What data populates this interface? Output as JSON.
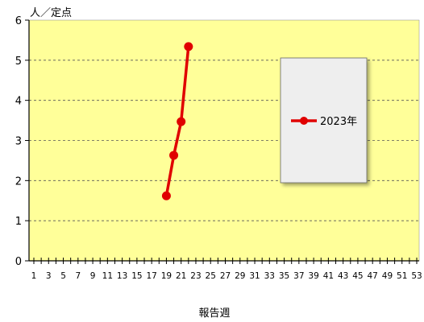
{
  "chart_data": {
    "type": "line",
    "ylabel": "人／定点",
    "xlabel": "報告週",
    "ylim": [
      0,
      6
    ],
    "xlim": [
      1,
      53
    ],
    "y_ticks": [
      0,
      1,
      2,
      3,
      4,
      5,
      6
    ],
    "x_tick_labels": [
      1,
      3,
      5,
      7,
      9,
      11,
      13,
      15,
      17,
      19,
      21,
      23,
      25,
      27,
      29,
      31,
      33,
      35,
      37,
      39,
      41,
      43,
      45,
      47,
      49,
      51,
      53
    ],
    "grid": true,
    "legend_position": "right",
    "series": [
      {
        "name": "2023年",
        "color": "#e00000",
        "points": [
          {
            "x": 19,
            "y": 1.62
          },
          {
            "x": 20,
            "y": 2.63
          },
          {
            "x": 21,
            "y": 3.47
          },
          {
            "x": 22,
            "y": 5.34
          }
        ]
      }
    ],
    "colors": {
      "plot_background": "#ffff99",
      "legend_background": "#eeeeee"
    }
  }
}
